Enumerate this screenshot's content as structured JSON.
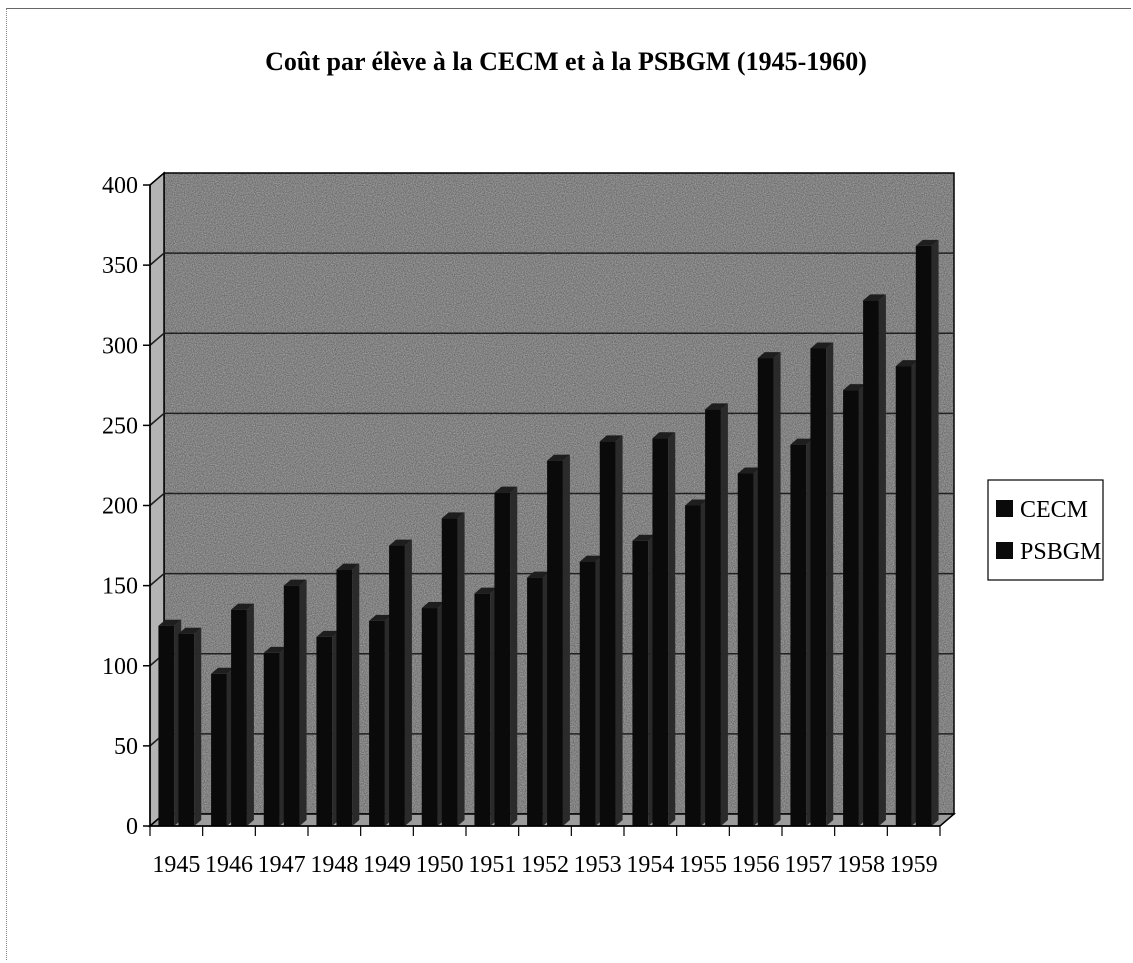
{
  "chart_data": {
    "type": "bar",
    "title": "Coût par élève à la CECM et à la PSBGM (1945-1960)",
    "xlabel": "",
    "ylabel": "",
    "ylim": [
      0,
      400
    ],
    "yticks": [
      0,
      50,
      100,
      150,
      200,
      250,
      300,
      350,
      400
    ],
    "grid": true,
    "legend_position": "right",
    "categories": [
      "1945",
      "1946",
      "1947",
      "1948",
      "1949",
      "1950",
      "1951",
      "1952",
      "1953",
      "1954",
      "1955",
      "1956",
      "1957",
      "1958",
      "1959"
    ],
    "series": [
      {
        "name": "CECM",
        "values": [
          125,
          95,
          108,
          118,
          128,
          136,
          145,
          155,
          165,
          178,
          200,
          220,
          238,
          272,
          287
        ]
      },
      {
        "name": "PSBGM",
        "values": [
          120,
          135,
          150,
          160,
          175,
          192,
          208,
          228,
          240,
          242,
          260,
          292,
          298,
          328,
          362
        ]
      }
    ],
    "colors": {
      "bar": "#0a0a0a",
      "bar_side": "#2a2a2a",
      "wall": "#b4b4b4",
      "floor": "#9c9c9c",
      "grid": "#202020"
    }
  }
}
